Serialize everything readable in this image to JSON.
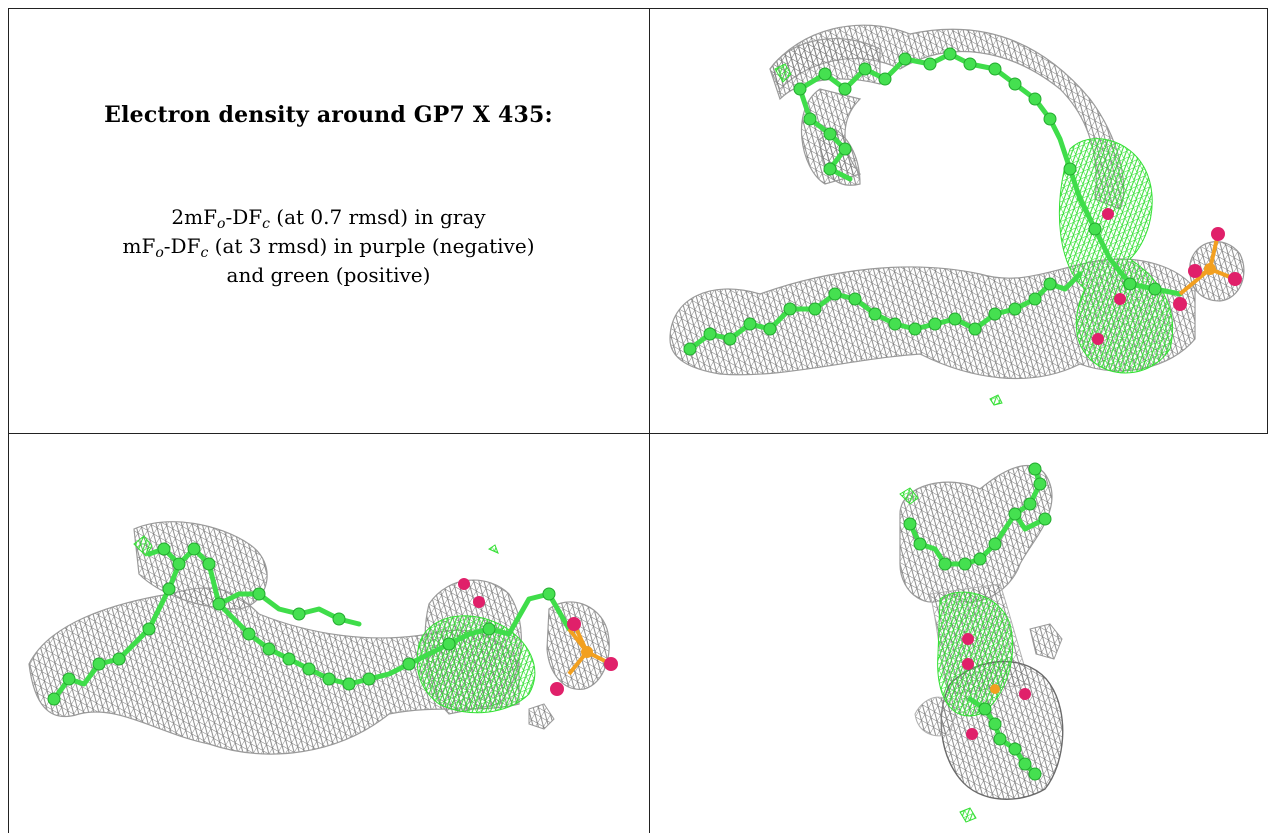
{
  "caption": {
    "title": "Electron density around GP7 X 435:",
    "line1_pre": "2mF",
    "line1_sub1": "o",
    "line1_mid": "-DF",
    "line1_sub2": "c",
    "line1_post": " (at 0.7 rmsd) in gray",
    "line2_pre": "mF",
    "line2_sub1": "o",
    "line2_mid": "-DF",
    "line2_sub2": "c",
    "line2_post": " (at 3 rmsd) in purple (negative)",
    "line3": "and green (positive)"
  },
  "colors": {
    "mesh_gray": "#8a8a8a",
    "mesh_green": "#3ee63e",
    "carbon": "#3fdd4a",
    "oxygen": "#e0206a",
    "phosphorus": "#f2a020"
  },
  "panels": [
    {
      "name": "view-top-right",
      "content": "density-model-view"
    },
    {
      "name": "view-bottom-left",
      "content": "density-model-view"
    },
    {
      "name": "view-bottom-right",
      "content": "density-model-view"
    }
  ]
}
